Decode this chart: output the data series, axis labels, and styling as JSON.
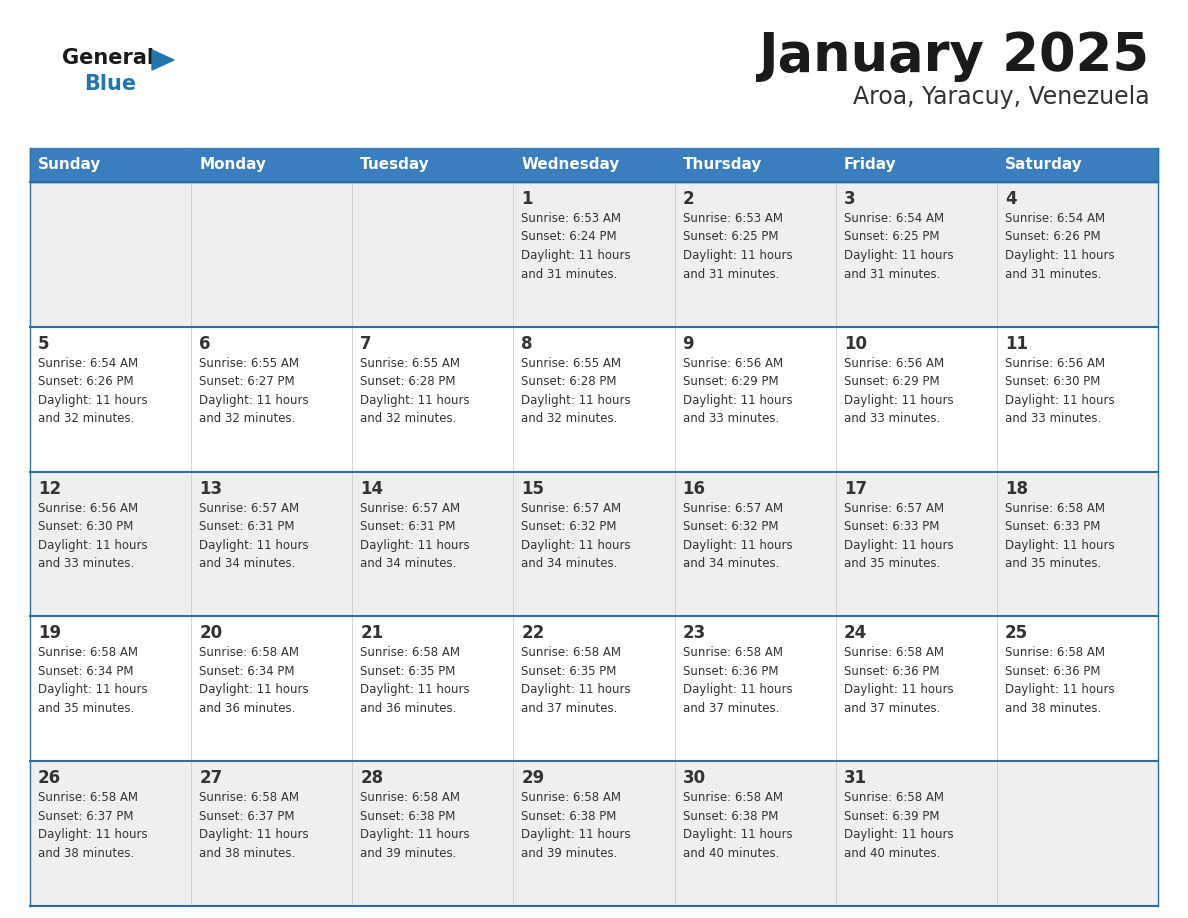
{
  "title": "January 2025",
  "subtitle": "Aroa, Yaracuy, Venezuela",
  "header_bg": "#3A7EBF",
  "header_text_color": "#FFFFFF",
  "days_of_week": [
    "Sunday",
    "Monday",
    "Tuesday",
    "Wednesday",
    "Thursday",
    "Friday",
    "Saturday"
  ],
  "row_bg_even": "#EFEFEF",
  "row_bg_odd": "#FFFFFF",
  "week_separator_color": "#2E6DA4",
  "text_color": "#333333",
  "logo_general_color": "#1A1A1A",
  "logo_blue_color": "#2176AE",
  "weeks": [
    [
      {
        "day": null,
        "info": null
      },
      {
        "day": null,
        "info": null
      },
      {
        "day": null,
        "info": null
      },
      {
        "day": 1,
        "info": "Sunrise: 6:53 AM\nSunset: 6:24 PM\nDaylight: 11 hours\nand 31 minutes."
      },
      {
        "day": 2,
        "info": "Sunrise: 6:53 AM\nSunset: 6:25 PM\nDaylight: 11 hours\nand 31 minutes."
      },
      {
        "day": 3,
        "info": "Sunrise: 6:54 AM\nSunset: 6:25 PM\nDaylight: 11 hours\nand 31 minutes."
      },
      {
        "day": 4,
        "info": "Sunrise: 6:54 AM\nSunset: 6:26 PM\nDaylight: 11 hours\nand 31 minutes."
      }
    ],
    [
      {
        "day": 5,
        "info": "Sunrise: 6:54 AM\nSunset: 6:26 PM\nDaylight: 11 hours\nand 32 minutes."
      },
      {
        "day": 6,
        "info": "Sunrise: 6:55 AM\nSunset: 6:27 PM\nDaylight: 11 hours\nand 32 minutes."
      },
      {
        "day": 7,
        "info": "Sunrise: 6:55 AM\nSunset: 6:28 PM\nDaylight: 11 hours\nand 32 minutes."
      },
      {
        "day": 8,
        "info": "Sunrise: 6:55 AM\nSunset: 6:28 PM\nDaylight: 11 hours\nand 32 minutes."
      },
      {
        "day": 9,
        "info": "Sunrise: 6:56 AM\nSunset: 6:29 PM\nDaylight: 11 hours\nand 33 minutes."
      },
      {
        "day": 10,
        "info": "Sunrise: 6:56 AM\nSunset: 6:29 PM\nDaylight: 11 hours\nand 33 minutes."
      },
      {
        "day": 11,
        "info": "Sunrise: 6:56 AM\nSunset: 6:30 PM\nDaylight: 11 hours\nand 33 minutes."
      }
    ],
    [
      {
        "day": 12,
        "info": "Sunrise: 6:56 AM\nSunset: 6:30 PM\nDaylight: 11 hours\nand 33 minutes."
      },
      {
        "day": 13,
        "info": "Sunrise: 6:57 AM\nSunset: 6:31 PM\nDaylight: 11 hours\nand 34 minutes."
      },
      {
        "day": 14,
        "info": "Sunrise: 6:57 AM\nSunset: 6:31 PM\nDaylight: 11 hours\nand 34 minutes."
      },
      {
        "day": 15,
        "info": "Sunrise: 6:57 AM\nSunset: 6:32 PM\nDaylight: 11 hours\nand 34 minutes."
      },
      {
        "day": 16,
        "info": "Sunrise: 6:57 AM\nSunset: 6:32 PM\nDaylight: 11 hours\nand 34 minutes."
      },
      {
        "day": 17,
        "info": "Sunrise: 6:57 AM\nSunset: 6:33 PM\nDaylight: 11 hours\nand 35 minutes."
      },
      {
        "day": 18,
        "info": "Sunrise: 6:58 AM\nSunset: 6:33 PM\nDaylight: 11 hours\nand 35 minutes."
      }
    ],
    [
      {
        "day": 19,
        "info": "Sunrise: 6:58 AM\nSunset: 6:34 PM\nDaylight: 11 hours\nand 35 minutes."
      },
      {
        "day": 20,
        "info": "Sunrise: 6:58 AM\nSunset: 6:34 PM\nDaylight: 11 hours\nand 36 minutes."
      },
      {
        "day": 21,
        "info": "Sunrise: 6:58 AM\nSunset: 6:35 PM\nDaylight: 11 hours\nand 36 minutes."
      },
      {
        "day": 22,
        "info": "Sunrise: 6:58 AM\nSunset: 6:35 PM\nDaylight: 11 hours\nand 37 minutes."
      },
      {
        "day": 23,
        "info": "Sunrise: 6:58 AM\nSunset: 6:36 PM\nDaylight: 11 hours\nand 37 minutes."
      },
      {
        "day": 24,
        "info": "Sunrise: 6:58 AM\nSunset: 6:36 PM\nDaylight: 11 hours\nand 37 minutes."
      },
      {
        "day": 25,
        "info": "Sunrise: 6:58 AM\nSunset: 6:36 PM\nDaylight: 11 hours\nand 38 minutes."
      }
    ],
    [
      {
        "day": 26,
        "info": "Sunrise: 6:58 AM\nSunset: 6:37 PM\nDaylight: 11 hours\nand 38 minutes."
      },
      {
        "day": 27,
        "info": "Sunrise: 6:58 AM\nSunset: 6:37 PM\nDaylight: 11 hours\nand 38 minutes."
      },
      {
        "day": 28,
        "info": "Sunrise: 6:58 AM\nSunset: 6:38 PM\nDaylight: 11 hours\nand 39 minutes."
      },
      {
        "day": 29,
        "info": "Sunrise: 6:58 AM\nSunset: 6:38 PM\nDaylight: 11 hours\nand 39 minutes."
      },
      {
        "day": 30,
        "info": "Sunrise: 6:58 AM\nSunset: 6:38 PM\nDaylight: 11 hours\nand 40 minutes."
      },
      {
        "day": 31,
        "info": "Sunrise: 6:58 AM\nSunset: 6:39 PM\nDaylight: 11 hours\nand 40 minutes."
      },
      {
        "day": null,
        "info": null
      }
    ]
  ]
}
